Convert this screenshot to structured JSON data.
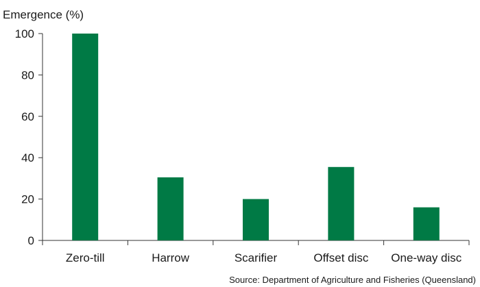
{
  "chart_data": {
    "type": "bar",
    "title": "",
    "xlabel": "",
    "ylabel": "Emergence (%)",
    "categories": [
      "Zero-till",
      "Harrow",
      "Scarifier",
      "Offset disc",
      "One-way disc"
    ],
    "values": [
      100,
      30.5,
      20,
      35.5,
      16
    ],
    "ylim": [
      0,
      100
    ],
    "yticks": [
      0,
      20,
      40,
      60,
      80,
      100
    ],
    "grid": false,
    "legend": "none",
    "bar_color": "#007a45",
    "source": "Source: Department of Agriculture and Fisheries (Queensland)"
  }
}
